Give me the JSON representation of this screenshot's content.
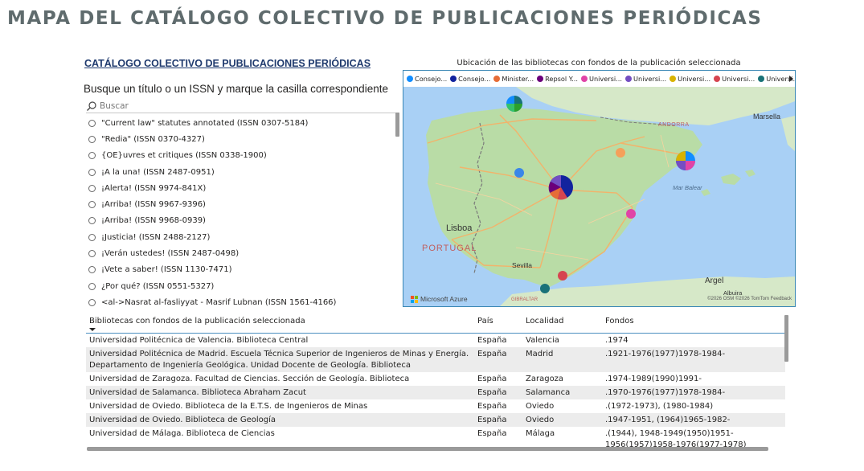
{
  "page": {
    "title": "MAPA DEL CATÁLOGO COLECTIVO DE PUBLICACIONES PERIÓDICAS"
  },
  "catalog_link": "CATÁLOGO COLECTIVO DE PUBLICACIONES PERIÓDICAS",
  "search": {
    "instruction": "Busque un título o un ISSN y marque la casilla correspondiente",
    "placeholder": "Buscar",
    "icon": "search-icon"
  },
  "slicer_items": [
    "\"Current law\" statutes annotated (ISSN 0307-5184)",
    "\"Redia\" (ISSN 0370-4327)",
    "{OE}uvres et critiques (ISSN 0338-1900)",
    "¡A la una! (ISSN 2487-0951)",
    "¡Alerta! (ISSN 9974-841X)",
    "¡Arriba! (ISSN 9967-9396)",
    "¡Arriba! (ISSN 9968-0939)",
    "¡Justicia! (ISSN 2488-2127)",
    "¡Verán ustedes! (ISSN 2487-0498)",
    "¡Vete a saber! (ISSN 1130-7471)",
    "¿Por qué? (ISSN 0551-5327)",
    "<al->Nasrat al-fasliyyat - Masrif Lubnan (ISSN 1561-4166)"
  ],
  "map": {
    "title": "Ubicación de las bibliotecas con fondos de la publicación seleccionada",
    "legend": [
      {
        "label": "Consejo...",
        "color": "#118dff"
      },
      {
        "label": "Consejo...",
        "color": "#12239e"
      },
      {
        "label": "Minister...",
        "color": "#e66c37"
      },
      {
        "label": "Repsol Y...",
        "color": "#6b007b"
      },
      {
        "label": "Universi...",
        "color": "#e044a7"
      },
      {
        "label": "Universi...",
        "color": "#744ec2"
      },
      {
        "label": "Universi...",
        "color": "#d9b300"
      },
      {
        "label": "Universi...",
        "color": "#d64550"
      },
      {
        "label": "Universi...",
        "color": "#197278"
      }
    ],
    "labels": {
      "marseille": "Marsella",
      "andorra": "ANDORRA",
      "sea": "Mar Balear",
      "lisbon": "Lisboa",
      "portugal": "PORTUGAL",
      "seville": "Sevilla",
      "algiers": "Argel",
      "albuira": "Albuira",
      "gibraltar": "GIBRALTAR"
    },
    "logo_text": "Microsoft Azure",
    "attribution": "©2026 OSM ©2026 TomTom  Feedback"
  },
  "table": {
    "columns": [
      "Bibliotecas con fondos de la publicación seleccionada",
      "País",
      "Localidad",
      "Fondos"
    ],
    "rows": [
      {
        "lib": "Universidad Politécnica de Valencia. Biblioteca Central",
        "pais": "España",
        "loc": "Valencia",
        "fondos": ".1974"
      },
      {
        "lib": "Universidad Politécnica de Madrid. Escuela Técnica Superior de Ingenieros de Minas y Energía. Departamento de Ingeniería Geológica. Unidad Docente de Geología. Biblioteca",
        "pais": "España",
        "loc": "Madrid",
        "fondos": ".1921-1976(1977)1978-1984-"
      },
      {
        "lib": "Universidad de Zaragoza. Facultad de Ciencias. Sección de Geología. Biblioteca",
        "pais": "España",
        "loc": "Zaragoza",
        "fondos": ".1974-1989(1990)1991-"
      },
      {
        "lib": "Universidad de Salamanca. Biblioteca Abraham Zacut",
        "pais": "España",
        "loc": "Salamanca",
        "fondos": ".1970-1976(1977)1978-1984-"
      },
      {
        "lib": "Universidad de Oviedo. Biblioteca de la E.T.S. de Ingenieros de Minas",
        "pais": "España",
        "loc": "Oviedo",
        "fondos": ".(1972-1973), (1980-1984)"
      },
      {
        "lib": "Universidad de Oviedo. Biblioteca de Geología",
        "pais": "España",
        "loc": "Oviedo",
        "fondos": ".1947-1951, (1964)1965-1982-"
      },
      {
        "lib": "Universidad de Málaga. Biblioteca de Ciencias",
        "pais": "España",
        "loc": "Málaga",
        "fondos": ".(1944), 1948-1949(1950)1951-1956(1957)1958-1976(1977-1978)"
      }
    ]
  }
}
